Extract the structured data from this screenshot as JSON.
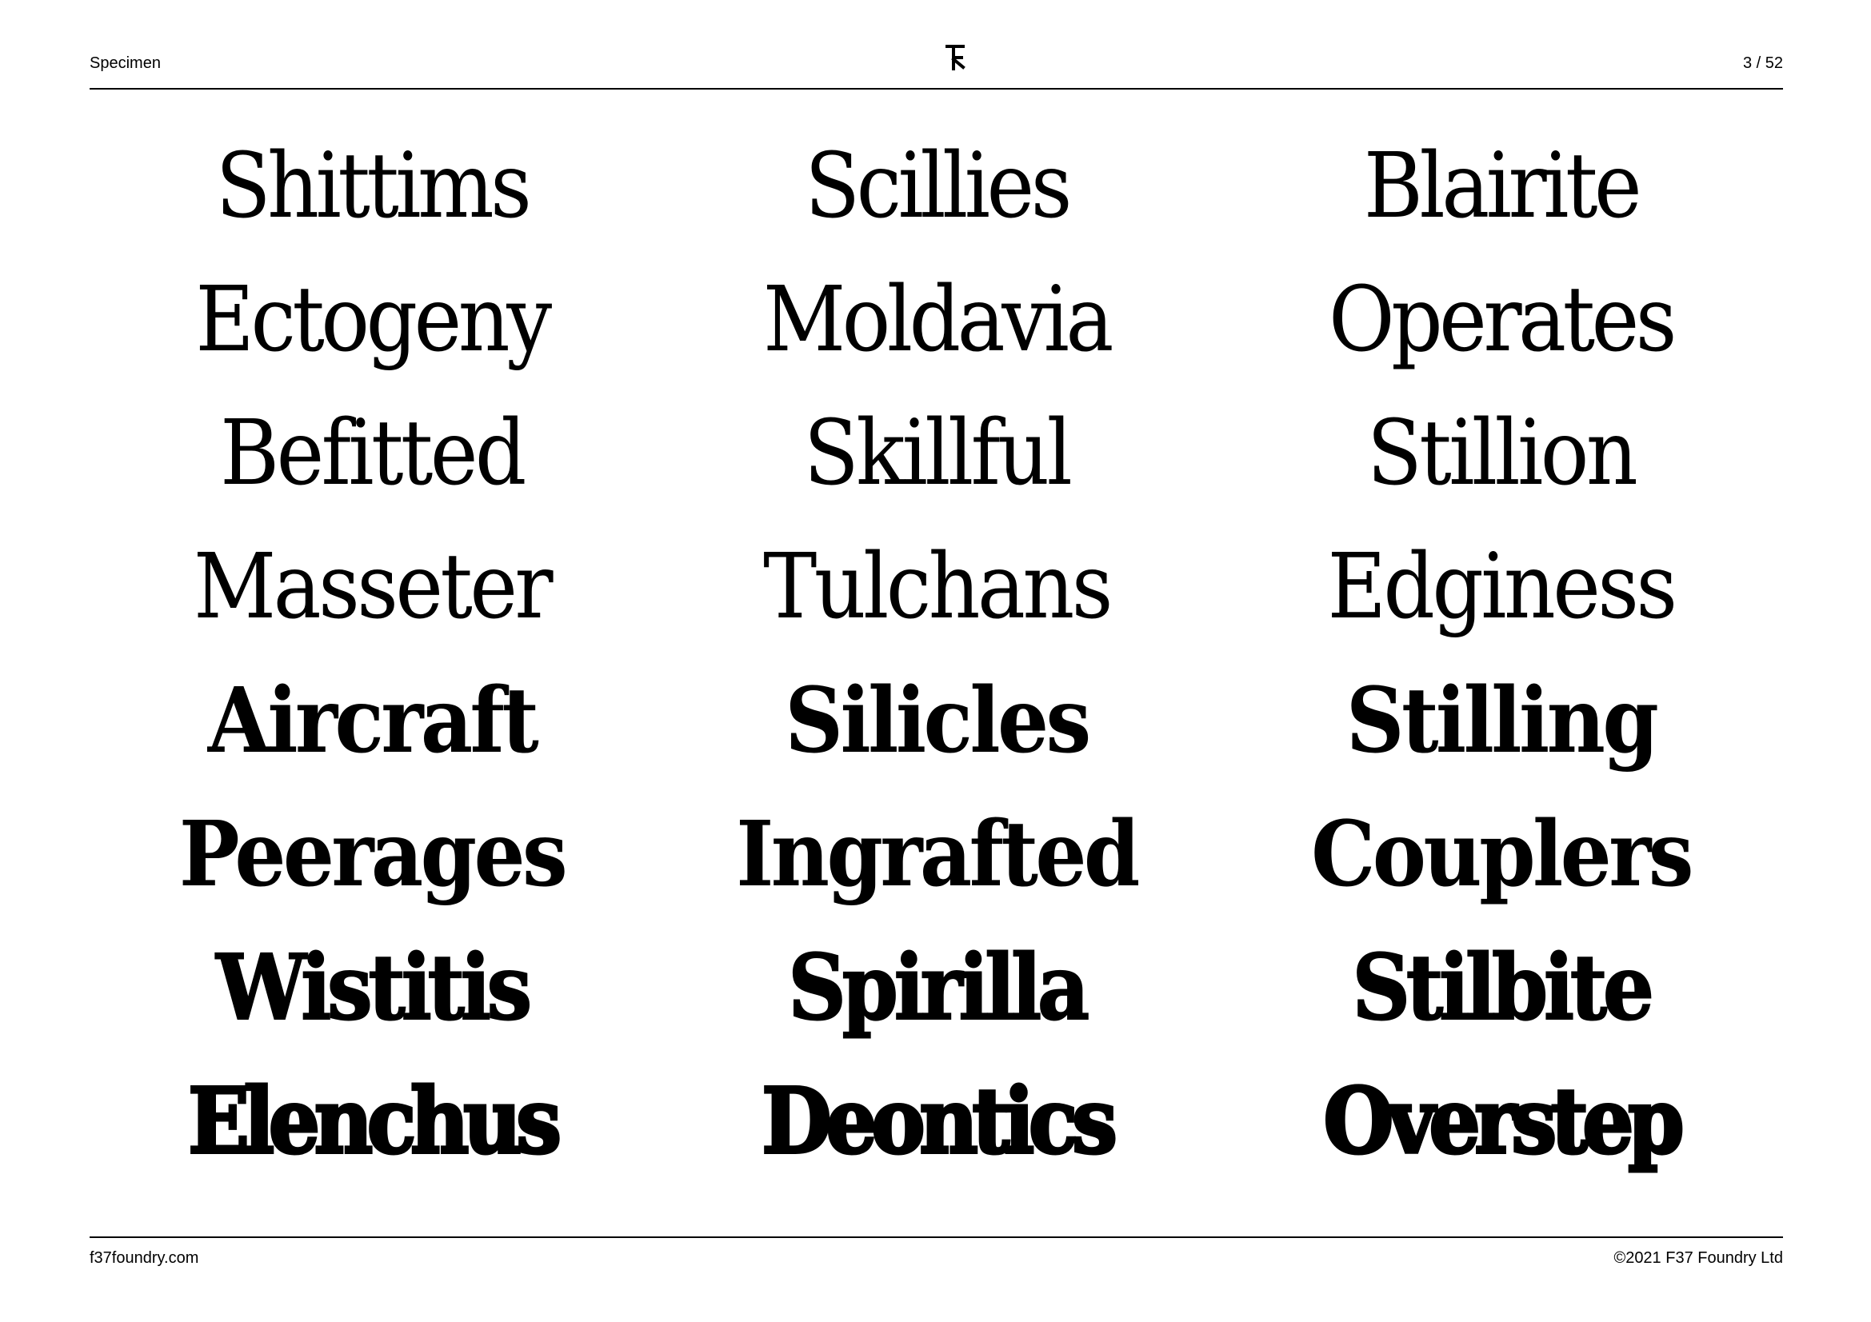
{
  "header": {
    "label": "Specimen",
    "page": "3 / 52",
    "logo_icon": "f37-logo-icon"
  },
  "specimen": {
    "rows": [
      [
        "Shittims",
        "Scillies",
        "Blairite"
      ],
      [
        "Ectogeny",
        "Moldavia",
        "Operates"
      ],
      [
        "Befitted",
        "Skillful",
        "Stillion"
      ],
      [
        "Masseter",
        "Tulchans",
        "Edginess"
      ],
      [
        "Aircraft",
        "Silicles",
        "Stilling"
      ],
      [
        "Peerages",
        "Ingrafted",
        "Couplers"
      ],
      [
        "Wistitis",
        "Spirilla",
        "Stilbite"
      ],
      [
        "Elenchus",
        "Deontics",
        "Overstep"
      ]
    ]
  },
  "footer": {
    "website": "f37foundry.com",
    "copyright": "©2021 F37 Foundry Ltd"
  }
}
